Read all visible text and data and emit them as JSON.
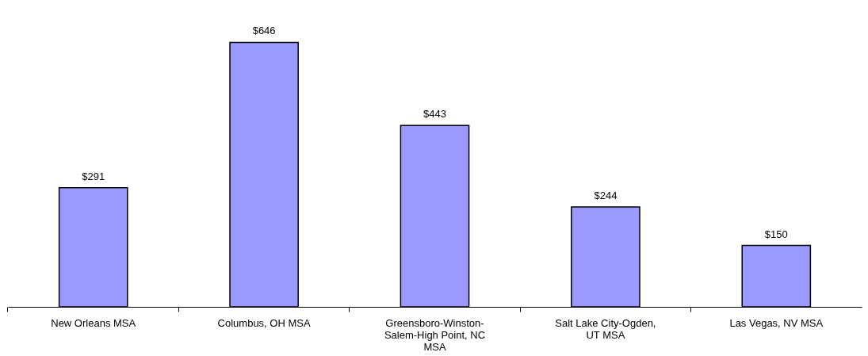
{
  "chart_data": {
    "type": "bar",
    "categories": [
      "New Orleans MSA",
      "Columbus, OH MSA",
      "Greensboro-Winston-Salem-High Point, NC MSA",
      "Salt Lake City-Ogden, UT MSA",
      "Las Vegas, NV MSA"
    ],
    "values": [
      291,
      646,
      443,
      244,
      150
    ],
    "value_labels": [
      "$291",
      "$646",
      "$443",
      "$244",
      "$150"
    ],
    "color": "#9999ff"
  }
}
